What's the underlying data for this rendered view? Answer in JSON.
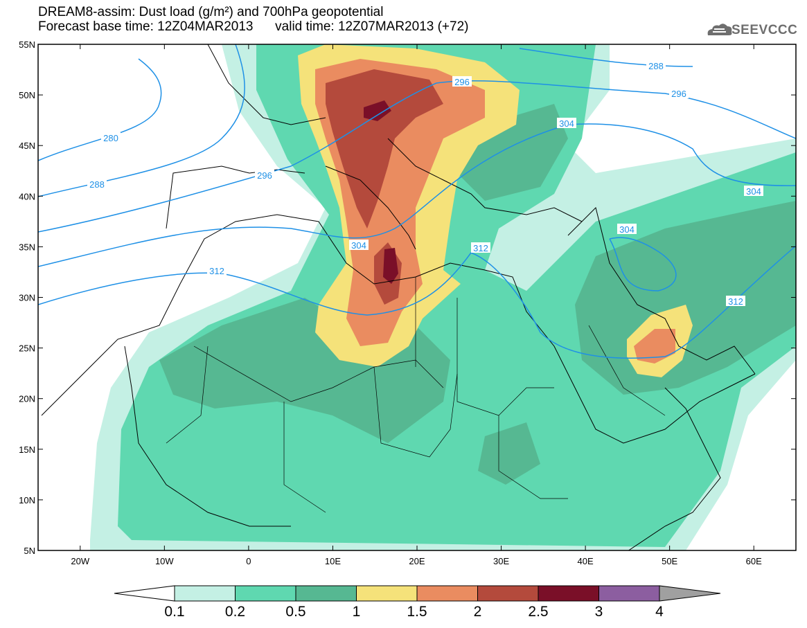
{
  "title": {
    "line1": "DREAM8-assim: Dust load (g/m²) and 700hPa geopotential",
    "line2": "Forecast base time: 12Z04MAR2013      valid time: 12Z07MAR2013 (+72)"
  },
  "logo": {
    "text": "SEEVCCC",
    "icon": "cloud-icon"
  },
  "map": {
    "lon_range": [
      -25,
      65
    ],
    "lat_range": [
      5,
      55
    ],
    "lat_ticks": [
      "55N",
      "50N",
      "45N",
      "40N",
      "35N",
      "30N",
      "25N",
      "20N",
      "15N",
      "10N",
      "5N"
    ],
    "lon_ticks": [
      "20W",
      "10W",
      "0",
      "10E",
      "20E",
      "30E",
      "40E",
      "50E",
      "60E"
    ],
    "contour_labels": [
      "280",
      "288",
      "288",
      "296",
      "296",
      "296",
      "304",
      "304",
      "304",
      "304",
      "312",
      "312",
      "312"
    ],
    "contour_color": "#1e90e6"
  },
  "colorbar": {
    "labels": [
      "0.1",
      "0.2",
      "0.5",
      "1",
      "1.5",
      "2",
      "2.5",
      "3",
      "4"
    ],
    "colors": [
      "#c4f0e4",
      "#5fd8b0",
      "#56b892",
      "#f5e27a",
      "#ea8c60",
      "#b44a3c",
      "#7a0f28",
      "#8c5ea0"
    ],
    "under_color": "#ffffff",
    "over_color": "#a0a0a0"
  }
}
